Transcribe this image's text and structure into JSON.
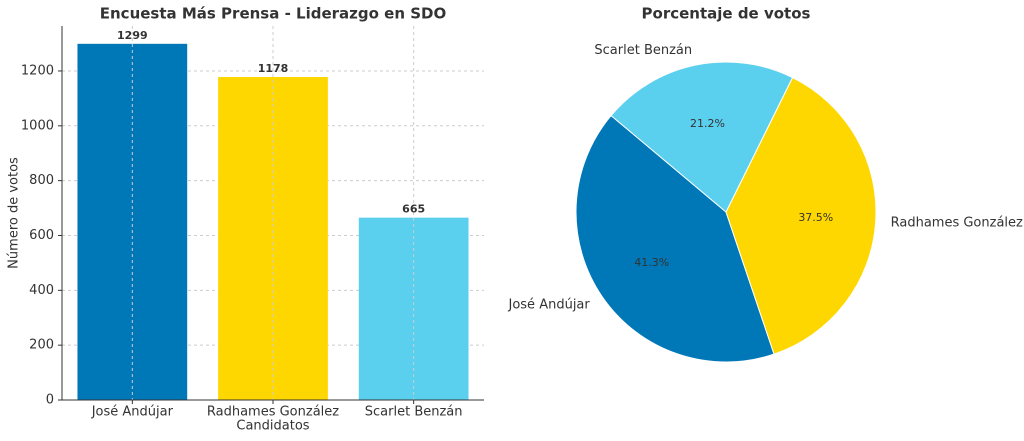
{
  "chart_data": [
    {
      "type": "bar",
      "title": "Encuesta Más Prensa - Liderazgo en SDO",
      "categories": [
        "José Andújar",
        "Radhames González",
        "Scarlet Benzán"
      ],
      "values": [
        1299,
        1178,
        665
      ],
      "colors": [
        "#0077b6",
        "#ffd700",
        "#5bd0ee"
      ],
      "xlabel": "Candidatos",
      "ylabel": "Número de votos",
      "ylim": [
        0,
        1364
      ],
      "yticks": [
        0,
        200,
        400,
        600,
        800,
        1000,
        1200
      ],
      "grid": true
    },
    {
      "type": "pie",
      "title": "Porcentaje de votos",
      "categories": [
        "José Andújar",
        "Radhames González",
        "Scarlet Benzán"
      ],
      "values": [
        41.3,
        37.5,
        21.2
      ],
      "value_labels": [
        "41.3%",
        "37.5%",
        "21.2%"
      ],
      "colors": [
        "#0077b6",
        "#ffd700",
        "#5bd0ee"
      ]
    }
  ]
}
